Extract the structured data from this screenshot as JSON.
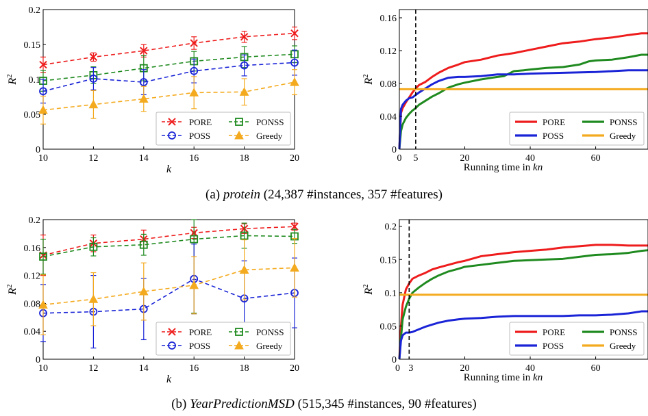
{
  "captions": [
    {
      "label": "(a)",
      "name": "protein",
      "detail": "(24,387 #instances, 357 #features)"
    },
    {
      "label": "(b)",
      "name": "YearPredictionMSD",
      "detail": "(515,345 #instances, 90 #features)"
    }
  ],
  "colors": {
    "pore": "#ee1c1c",
    "ponss": "#1f8a1f",
    "poss": "#1a24d6",
    "greedy": "#f4aa1e",
    "marker_line": "#000000"
  },
  "chart_data": [
    {
      "id": "a-left",
      "type": "line",
      "x": [
        10,
        12,
        14,
        16,
        18,
        20
      ],
      "xticks": [
        "10",
        "12",
        "14",
        "16",
        "18",
        "20"
      ],
      "yticks": [
        "0",
        "0.05",
        "0.1",
        "0.15",
        "0.2"
      ],
      "ytick_values": [
        0,
        0.05,
        0.1,
        0.15,
        0.2
      ],
      "xlim": [
        10,
        20
      ],
      "ylim": [
        0,
        0.2
      ],
      "xlabel": "k",
      "ylabel": "R",
      "ylabel_sup": "2",
      "grid": false,
      "legend_position": "bottom-right",
      "legend_columns": 2,
      "series": [
        {
          "name": "PORE",
          "key": "pore",
          "marker": "x",
          "values": [
            0.121,
            0.132,
            0.141,
            0.152,
            0.161,
            0.166
          ],
          "err": [
            0.011,
            0.006,
            0.009,
            0.009,
            0.008,
            0.009
          ]
        },
        {
          "name": "PONSS",
          "key": "ponss",
          "marker": "square",
          "values": [
            0.098,
            0.106,
            0.116,
            0.126,
            0.132,
            0.136
          ],
          "err": [
            0.015,
            0.012,
            0.018,
            0.014,
            0.015,
            0.012
          ]
        },
        {
          "name": "POSS",
          "key": "poss",
          "marker": "circle",
          "values": [
            0.083,
            0.101,
            0.096,
            0.112,
            0.12,
            0.124
          ],
          "err": [
            0.017,
            0.016,
            0.018,
            0.017,
            0.015,
            0.018
          ]
        },
        {
          "name": "Greedy",
          "key": "greedy",
          "marker": "triangle",
          "values": [
            0.056,
            0.064,
            0.072,
            0.081,
            0.082,
            0.096
          ],
          "err": [
            0.02,
            0.02,
            0.018,
            0.023,
            0.019,
            0.018
          ]
        }
      ]
    },
    {
      "id": "a-right",
      "type": "line",
      "xlim": [
        0,
        76
      ],
      "ylim": [
        0,
        0.17
      ],
      "xtick_values": [
        0,
        5,
        20,
        40,
        60
      ],
      "xticks": [
        "0",
        "5",
        "20",
        "40",
        "60"
      ],
      "ytick_values": [
        0,
        0.04,
        0.08,
        0.12,
        0.16
      ],
      "yticks": [
        "0",
        "0.04",
        "0.08",
        "0.12",
        "0.16"
      ],
      "xlabel": "Running time in",
      "xlabel_italic": "kn",
      "ylabel": "R",
      "ylabel_sup": "2",
      "vline_x": 5,
      "grid": false,
      "legend_position": "bottom-right",
      "legend_columns": 2,
      "series": [
        {
          "name": "PORE",
          "key": "pore",
          "x": [
            0,
            0.5,
            1,
            2,
            3,
            4,
            5,
            6,
            8,
            10,
            12,
            15,
            18,
            20,
            25,
            30,
            35,
            40,
            45,
            50,
            55,
            60,
            65,
            70,
            74,
            76
          ],
          "y": [
            0.0,
            0.044,
            0.05,
            0.057,
            0.063,
            0.069,
            0.074,
            0.078,
            0.082,
            0.088,
            0.093,
            0.099,
            0.103,
            0.106,
            0.109,
            0.114,
            0.117,
            0.121,
            0.125,
            0.129,
            0.131,
            0.134,
            0.136,
            0.139,
            0.141,
            0.141
          ]
        },
        {
          "name": "PONSS",
          "key": "ponss",
          "x": [
            0,
            0.5,
            1,
            2,
            3,
            4,
            5,
            6,
            8,
            10,
            12,
            15,
            18,
            20,
            25,
            30,
            32,
            35,
            38,
            40,
            45,
            50,
            55,
            58,
            60,
            65,
            70,
            74,
            76
          ],
          "y": [
            0.0,
            0.022,
            0.03,
            0.038,
            0.043,
            0.047,
            0.05,
            0.054,
            0.059,
            0.064,
            0.068,
            0.075,
            0.079,
            0.081,
            0.085,
            0.088,
            0.089,
            0.095,
            0.096,
            0.097,
            0.099,
            0.1,
            0.103,
            0.107,
            0.108,
            0.109,
            0.112,
            0.115,
            0.115
          ]
        },
        {
          "name": "POSS",
          "key": "poss",
          "x": [
            0,
            0.5,
            1,
            2,
            3,
            4,
            5,
            6,
            8,
            10,
            12,
            15,
            18,
            20,
            25,
            30,
            35,
            40,
            50,
            60,
            70,
            76
          ],
          "y": [
            0.0,
            0.049,
            0.054,
            0.059,
            0.062,
            0.063,
            0.066,
            0.069,
            0.074,
            0.079,
            0.083,
            0.087,
            0.088,
            0.088,
            0.089,
            0.091,
            0.091,
            0.092,
            0.093,
            0.094,
            0.096,
            0.096
          ]
        },
        {
          "name": "Greedy",
          "key": "greedy",
          "x": [
            0,
            76
          ],
          "y": [
            0.073,
            0.073
          ]
        }
      ]
    },
    {
      "id": "b-left",
      "type": "line",
      "x": [
        10,
        12,
        14,
        16,
        18,
        20
      ],
      "xticks": [
        "10",
        "12",
        "14",
        "16",
        "18",
        "20"
      ],
      "yticks": [
        "0",
        "0.04",
        "0.08",
        "0.12",
        "0.16",
        "0.2"
      ],
      "ytick_values": [
        0,
        0.04,
        0.08,
        0.12,
        0.16,
        0.2
      ],
      "xlim": [
        10,
        20
      ],
      "ylim": [
        0,
        0.2
      ],
      "xlabel": "k",
      "ylabel": "R",
      "ylabel_sup": "2",
      "grid": false,
      "legend_position": "bottom-right",
      "legend_columns": 2,
      "series": [
        {
          "name": "PORE",
          "key": "pore",
          "marker": "x",
          "values": [
            0.149,
            0.166,
            0.172,
            0.181,
            0.187,
            0.19
          ],
          "err": [
            0.029,
            0.012,
            0.013,
            0.008,
            0.007,
            0.005
          ]
        },
        {
          "name": "PONSS",
          "key": "ponss",
          "marker": "square",
          "values": [
            0.147,
            0.161,
            0.164,
            0.172,
            0.177,
            0.176
          ],
          "err": [
            0.025,
            0.013,
            0.015,
            0.106,
            0.018,
            0.01
          ]
        },
        {
          "name": "POSS",
          "key": "poss",
          "marker": "circle",
          "values": [
            0.066,
            0.068,
            0.072,
            0.115,
            0.087,
            0.095
          ],
          "err": [
            0.041,
            0.052,
            0.044,
            0.05,
            0.054,
            0.05
          ]
        },
        {
          "name": "Greedy",
          "key": "greedy",
          "marker": "triangle",
          "values": [
            0.078,
            0.086,
            0.097,
            0.106,
            0.128,
            0.131
          ],
          "err": [
            0.043,
            0.038,
            0.041,
            0.041,
            0.043,
            0.042
          ]
        }
      ]
    },
    {
      "id": "b-right",
      "type": "line",
      "xlim": [
        0,
        76
      ],
      "ylim": [
        0,
        0.21
      ],
      "xtick_values": [
        0,
        3,
        20,
        40,
        60
      ],
      "xticks": [
        "0",
        "3",
        "20",
        "40",
        "60"
      ],
      "xtick_align": [
        "end",
        "start",
        "middle",
        "middle",
        "middle"
      ],
      "ytick_values": [
        0,
        0.05,
        0.1,
        0.15,
        0.2
      ],
      "yticks": [
        "0",
        "0.05",
        "0.1",
        "0.15",
        "0.2"
      ],
      "xlabel": "Running time in",
      "xlabel_italic": "kn",
      "ylabel": "R",
      "ylabel_sup": "2",
      "vline_x": 3,
      "grid": false,
      "legend_position": "bottom-right",
      "legend_columns": 2,
      "series": [
        {
          "name": "PORE",
          "key": "pore",
          "x": [
            0,
            0.5,
            1,
            2,
            3,
            4,
            6,
            8,
            10,
            12,
            15,
            18,
            20,
            25,
            30,
            35,
            40,
            45,
            50,
            55,
            60,
            65,
            70,
            74,
            76
          ],
          "y": [
            0.0,
            0.05,
            0.082,
            0.105,
            0.114,
            0.121,
            0.126,
            0.13,
            0.135,
            0.138,
            0.142,
            0.146,
            0.148,
            0.155,
            0.158,
            0.161,
            0.163,
            0.165,
            0.168,
            0.17,
            0.172,
            0.172,
            0.171,
            0.171,
            0.171
          ]
        },
        {
          "name": "PONSS",
          "key": "ponss",
          "x": [
            0,
            0.5,
            1,
            2,
            3,
            4,
            6,
            8,
            10,
            12,
            15,
            18,
            20,
            25,
            30,
            35,
            40,
            45,
            50,
            55,
            60,
            65,
            70,
            74,
            76
          ],
          "y": [
            0.0,
            0.032,
            0.06,
            0.079,
            0.091,
            0.1,
            0.108,
            0.115,
            0.121,
            0.126,
            0.132,
            0.136,
            0.139,
            0.142,
            0.145,
            0.148,
            0.149,
            0.15,
            0.151,
            0.154,
            0.157,
            0.158,
            0.16,
            0.163,
            0.164
          ]
        },
        {
          "name": "POSS",
          "key": "poss",
          "x": [
            0,
            0.5,
            1,
            2,
            3,
            4,
            6,
            8,
            10,
            12,
            15,
            18,
            20,
            25,
            30,
            35,
            40,
            45,
            50,
            55,
            60,
            65,
            70,
            74,
            76
          ],
          "y": [
            0.0,
            0.028,
            0.036,
            0.04,
            0.04,
            0.041,
            0.045,
            0.049,
            0.052,
            0.055,
            0.058,
            0.06,
            0.061,
            0.062,
            0.064,
            0.065,
            0.065,
            0.065,
            0.065,
            0.066,
            0.066,
            0.067,
            0.069,
            0.072,
            0.072
          ]
        },
        {
          "name": "Greedy",
          "key": "greedy",
          "x": [
            0,
            76
          ],
          "y": [
            0.097,
            0.097
          ]
        }
      ]
    }
  ]
}
